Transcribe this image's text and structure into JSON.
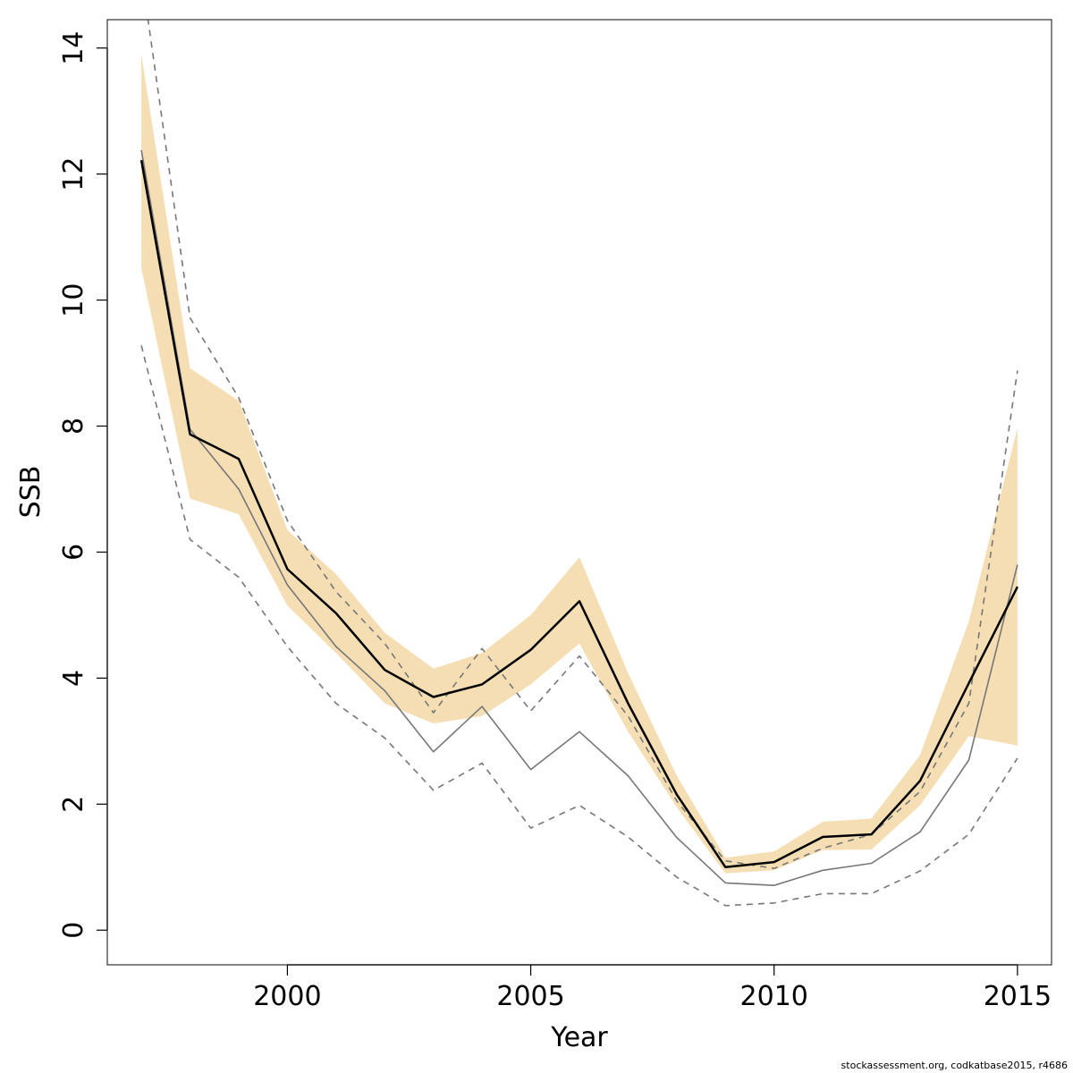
{
  "chart_data": {
    "type": "line",
    "xlabel": "Year",
    "ylabel": "SSB",
    "xlim": [
      1996.3,
      2015.7
    ],
    "ylim": [
      -0.55,
      14.45
    ],
    "xticks": [
      2000,
      2005,
      2010,
      2015
    ],
    "yticks": [
      0,
      2,
      4,
      6,
      8,
      10,
      12,
      14
    ],
    "grid": false,
    "legend": "none",
    "colors": {
      "band": "#f5deb3",
      "estimate": "#000000",
      "retro": "#777777",
      "dashed": "#777777",
      "frame": "#333333"
    },
    "x": [
      1997,
      1998,
      1999,
      2000,
      2001,
      2002,
      2003,
      2004,
      2005,
      2006,
      2007,
      2008,
      2009,
      2010,
      2011,
      2012,
      2013,
      2014,
      2015
    ],
    "band_lower": [
      10.5,
      6.85,
      6.6,
      5.15,
      4.4,
      3.6,
      3.28,
      3.4,
      3.9,
      4.55,
      3.15,
      1.95,
      0.9,
      0.95,
      1.27,
      1.28,
      1.98,
      3.08,
      2.93
    ],
    "band_upper": [
      13.9,
      8.92,
      8.4,
      6.35,
      5.65,
      4.72,
      4.15,
      4.4,
      5.0,
      5.92,
      4.08,
      2.45,
      1.15,
      1.25,
      1.72,
      1.77,
      2.78,
      4.9,
      7.97
    ],
    "series": [
      {
        "values": [
          12.22,
          7.87,
          7.48,
          5.73,
          5.03,
          4.13,
          3.7,
          3.9,
          4.45,
          5.22,
          3.6,
          2.15,
          1.0,
          1.08,
          1.48,
          1.52,
          2.37,
          3.92,
          5.45
        ]
      },
      {
        "values": [
          12.38,
          7.95,
          7.0,
          5.48,
          4.5,
          3.8,
          2.83,
          3.55,
          2.55,
          3.15,
          2.45,
          1.47,
          0.75,
          0.71,
          0.95,
          1.06,
          1.56,
          2.7,
          5.8
        ]
      },
      {
        "values": [
          15.2,
          9.72,
          8.45,
          6.5,
          5.37,
          4.55,
          3.45,
          4.47,
          3.48,
          4.35,
          3.4,
          2.05,
          1.1,
          0.98,
          1.3,
          1.52,
          2.2,
          3.6,
          8.88
        ]
      },
      {
        "values": [
          9.28,
          6.2,
          5.6,
          4.5,
          3.6,
          3.05,
          2.22,
          2.65,
          1.62,
          1.98,
          1.48,
          0.84,
          0.39,
          0.43,
          0.58,
          0.58,
          0.94,
          1.52,
          2.73
        ]
      }
    ]
  },
  "footer": "stockassessment.org, codkatbase2015, r4686"
}
